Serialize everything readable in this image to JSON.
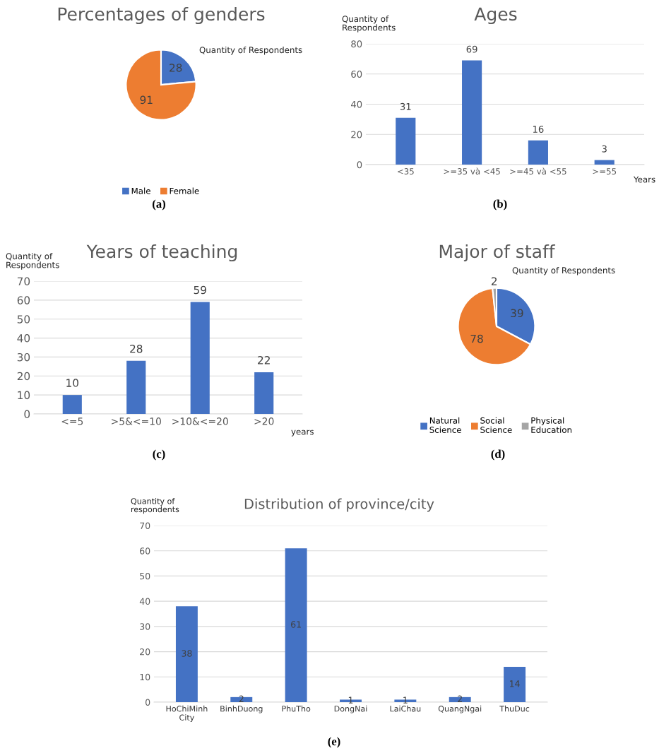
{
  "chart_data": [
    {
      "type": "pie",
      "title": "Percentages of genders",
      "categories": [
        "Male",
        "Female"
      ],
      "values": [
        28,
        91
      ],
      "colors": [
        "#4472c4",
        "#ed7d31"
      ],
      "data_labels": true,
      "legend": "bottom",
      "annotations": [
        "Quantity of Respondents",
        "(a)"
      ]
    },
    {
      "type": "bar",
      "title": "Ages",
      "ylabel": "Quantity of Respondents",
      "xlabel": "Years",
      "categories": [
        "<35",
        ">=35 và <45",
        ">=45 và <55",
        ">=55"
      ],
      "values": [
        31,
        69,
        16,
        3
      ],
      "color": "#4472c4",
      "ylim": [
        0,
        80
      ],
      "yticks": [
        0,
        20,
        40,
        60,
        80
      ],
      "grid": "y",
      "data_labels": true,
      "annotations": [
        "(b)"
      ]
    },
    {
      "type": "bar",
      "title": "Years of teaching",
      "ylabel": "Quantity of Respondents",
      "xlabel": "years",
      "categories": [
        "<=5",
        ">5&<=10",
        ">10&<=20",
        ">20"
      ],
      "values": [
        10,
        28,
        59,
        22
      ],
      "color": "#4472c4",
      "ylim": [
        0,
        70
      ],
      "yticks": [
        0,
        10,
        20,
        30,
        40,
        50,
        60,
        70
      ],
      "grid": "y",
      "data_labels": true,
      "annotations": [
        "(c)"
      ]
    },
    {
      "type": "pie",
      "title": "Major of staff",
      "categories": [
        "Natural Science",
        "Social Science",
        "Physical Education"
      ],
      "values": [
        39,
        78,
        2
      ],
      "colors": [
        "#4472c4",
        "#ed7d31",
        "#a5a5a5"
      ],
      "data_labels": true,
      "legend": "bottom",
      "annotations": [
        "Quantity of Respondents",
        "(d)"
      ]
    },
    {
      "type": "bar",
      "title": "Distribution of province/city",
      "ylabel": "Quantity of respondents",
      "categories": [
        "HoChiMinh City",
        "BinhDuong",
        "PhuTho",
        "DongNai",
        "LaiChau",
        "QuangNgai",
        "ThuDuc"
      ],
      "values": [
        38,
        2,
        61,
        1,
        1,
        2,
        14
      ],
      "color": "#4472c4",
      "ylim": [
        0,
        70
      ],
      "yticks": [
        0,
        10,
        20,
        30,
        40,
        50,
        60,
        70
      ],
      "grid": "y",
      "data_labels": true,
      "annotations": [
        "(e)"
      ]
    }
  ]
}
